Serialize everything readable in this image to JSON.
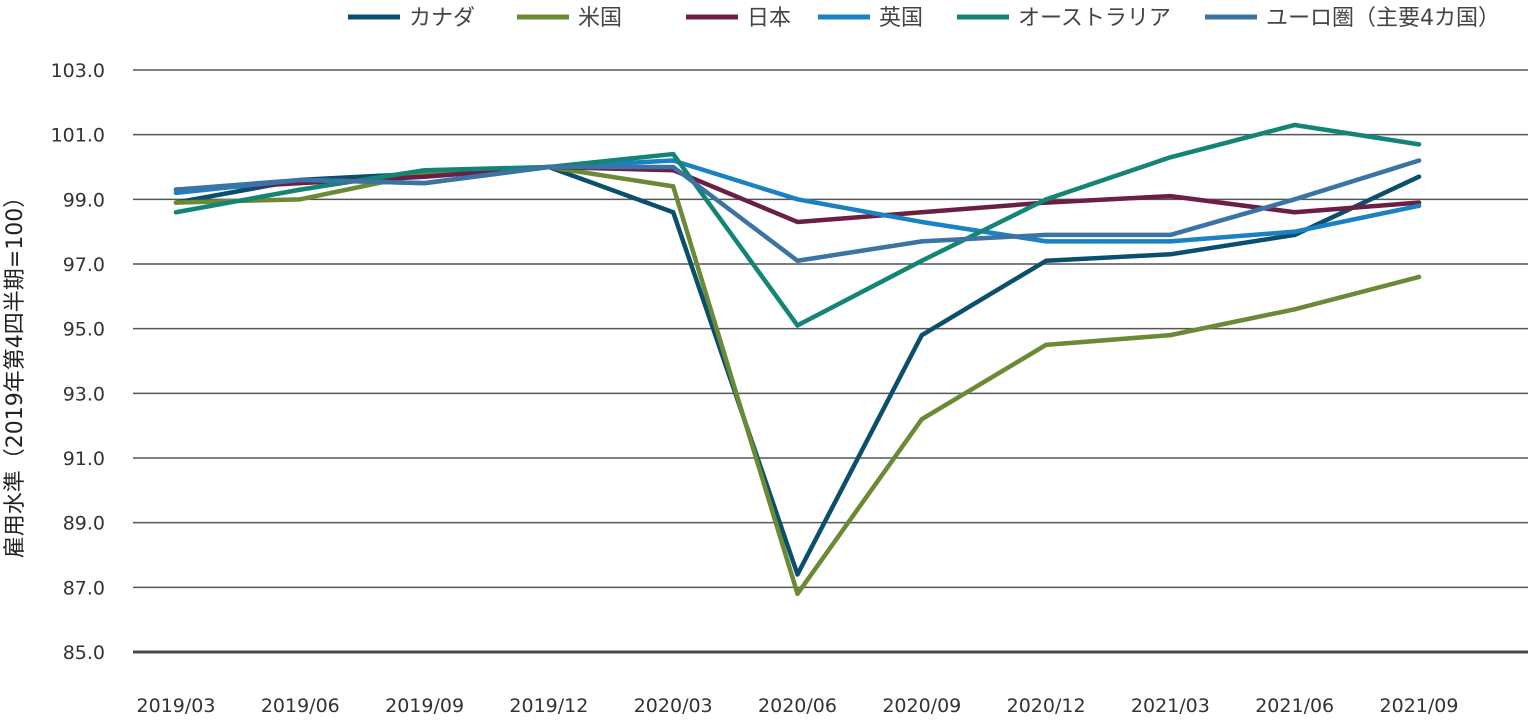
{
  "chart_data": {
    "type": "line",
    "title": "",
    "xlabel": "",
    "ylabel": "雇用水準（2019年第4四半期=100）",
    "ylim": [
      85.0,
      103.0
    ],
    "yticks": [
      "103.0",
      "101.0",
      "99.0",
      "97.0",
      "95.0",
      "93.0",
      "91.0",
      "89.0",
      "87.0",
      "85.0"
    ],
    "grid": "horizontal",
    "legend_position": "top",
    "categories": [
      "2019/03",
      "2019/06",
      "2019/09",
      "2019/12",
      "2020/03",
      "2020/06",
      "2020/09",
      "2020/12",
      "2021/03",
      "2021/06",
      "2021/09"
    ],
    "series": [
      {
        "name": "カナダ",
        "color": "#0b4f6c",
        "values": [
          98.9,
          99.6,
          99.8,
          100.0,
          98.6,
          87.4,
          94.8,
          97.1,
          97.3,
          97.9,
          99.7
        ]
      },
      {
        "name": "米国",
        "color": "#6b8a35",
        "values": [
          98.9,
          99.0,
          99.8,
          100.0,
          99.4,
          86.8,
          92.2,
          94.5,
          94.8,
          95.6,
          96.6
        ]
      },
      {
        "name": "日本",
        "color": "#6b1f45",
        "values": [
          99.3,
          99.5,
          99.7,
          100.0,
          99.9,
          98.3,
          98.6,
          98.9,
          99.1,
          98.6,
          98.9
        ]
      },
      {
        "name": "英国",
        "color": "#1a82c2",
        "values": [
          99.2,
          99.6,
          99.5,
          100.0,
          100.2,
          99.0,
          98.3,
          97.7,
          97.7,
          98.0,
          98.8
        ]
      },
      {
        "name": "オーストラリア",
        "color": "#148574",
        "values": [
          98.6,
          99.3,
          99.9,
          100.0,
          100.4,
          95.1,
          97.1,
          99.0,
          100.3,
          101.3,
          100.7
        ]
      },
      {
        "name": "ユーロ圏（主要4カ国）",
        "color": "#3b73a3",
        "values": [
          99.3,
          99.6,
          99.5,
          100.0,
          100.0,
          97.1,
          97.7,
          97.9,
          97.9,
          99.0,
          100.2
        ]
      }
    ]
  }
}
